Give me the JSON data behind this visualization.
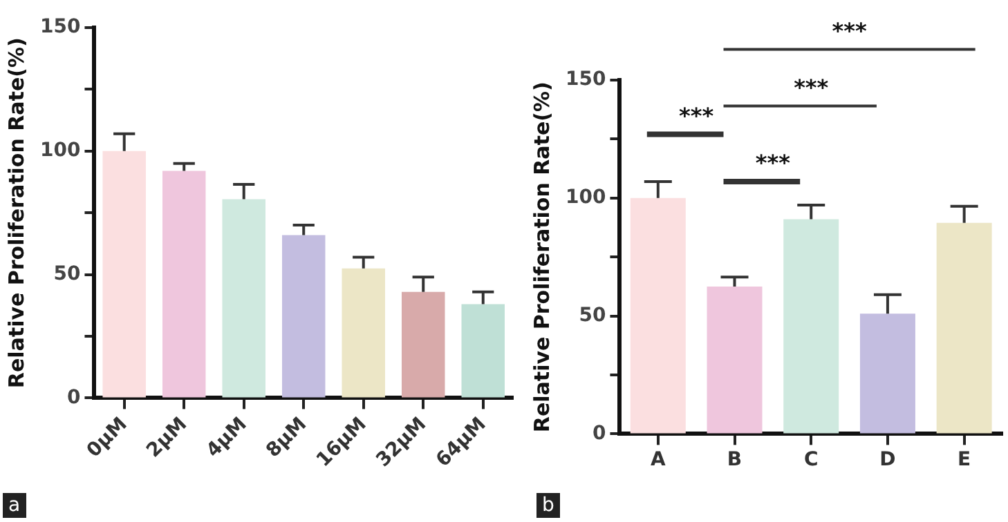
{
  "chart_data": [
    {
      "type": "bar",
      "ylabel": "Relative Proliferation Rate(%)",
      "categories": [
        "0μM",
        "2μM",
        "4μM",
        "8μM",
        "16μM",
        "32μM",
        "64μM"
      ],
      "values": [
        100,
        92,
        80.5,
        66,
        52.5,
        43,
        38
      ],
      "colors": [
        "#fbdfe0",
        "#efc6dd",
        "#cfe9df",
        "#c3bde0",
        "#ece6c6",
        "#d8aaaa",
        "#bfe0d6"
      ],
      "errors": [
        [
          100,
          107
        ],
        [
          92,
          95
        ],
        [
          80.5,
          86.5
        ],
        [
          66,
          70
        ],
        [
          52.5,
          57
        ],
        [
          43,
          49
        ],
        [
          38,
          43
        ]
      ],
      "ylim": [
        0,
        150
      ],
      "yticks": [
        0,
        {
          "value": 25,
          "label": null
        },
        50,
        {
          "value": 75,
          "label": null
        },
        100,
        {
          "value": 125,
          "label": null
        },
        150
      ],
      "grid": false,
      "legend": false,
      "annotations": [
        "a"
      ]
    },
    {
      "type": "bar",
      "ylabel": "Relative Proliferation Rate(%)",
      "categories": [
        "A",
        "B",
        "C",
        "D",
        "E"
      ],
      "values": [
        100,
        62.5,
        91,
        51,
        89.5
      ],
      "colors": [
        "#fbdfe0",
        "#efc6dd",
        "#cfe9df",
        "#c3bde0",
        "#ece6c6"
      ],
      "errors": [
        [
          100,
          107
        ],
        [
          62.5,
          66.5
        ],
        [
          91,
          97
        ],
        [
          51,
          59
        ],
        [
          89.5,
          96.5
        ]
      ],
      "ylim": [
        0,
        150
      ],
      "yticks": [
        0,
        {
          "value": 25,
          "label": null
        },
        50,
        {
          "value": 75,
          "label": null
        },
        100,
        {
          "value": 125,
          "label": null
        },
        150
      ],
      "grid": false,
      "legend": false,
      "annotations": [
        "b",
        "***",
        "***",
        "***",
        "***"
      ]
    }
  ]
}
